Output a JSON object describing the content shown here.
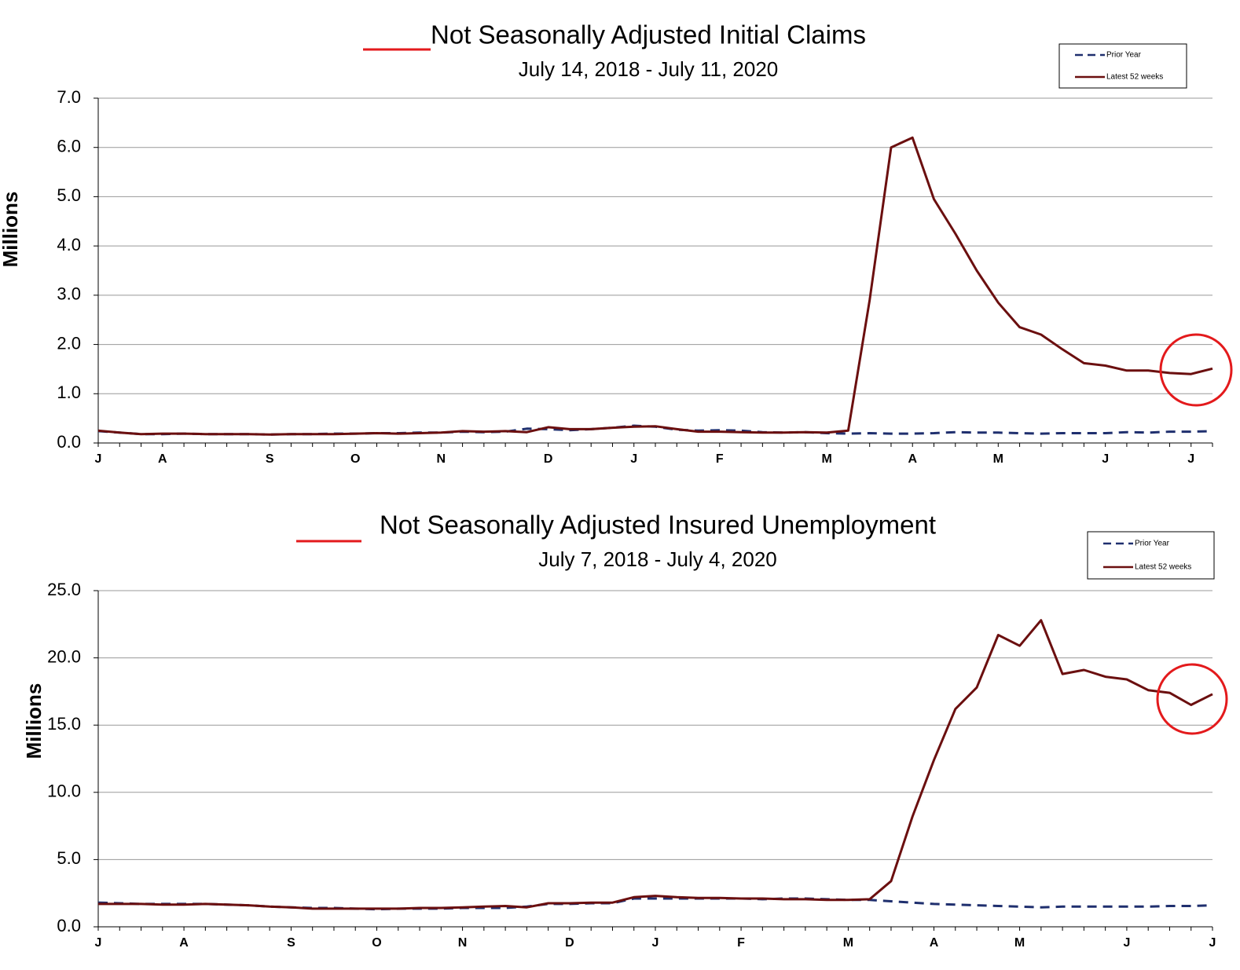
{
  "chart_data": [
    {
      "type": "line",
      "title": "Not Seasonally Adjusted Initial Claims",
      "subtitle": "July 14, 2018  - July 11, 2020",
      "y_label": "Millions",
      "categories": [
        "J",
        null,
        null,
        "A",
        null,
        null,
        null,
        null,
        "S",
        null,
        null,
        null,
        "O",
        null,
        null,
        null,
        "N",
        null,
        null,
        null,
        null,
        "D",
        null,
        null,
        null,
        "J",
        null,
        null,
        null,
        "F",
        null,
        null,
        null,
        null,
        "M",
        null,
        null,
        null,
        "A",
        null,
        null,
        null,
        "M",
        null,
        null,
        null,
        null,
        "J",
        null,
        null,
        null,
        "J",
        null
      ],
      "series": [
        {
          "name": "Prior Year",
          "color": "#1f2f6e",
          "dashed": true,
          "values": [
            0.24,
            0.21,
            0.18,
            0.18,
            0.19,
            0.18,
            0.18,
            0.18,
            0.17,
            0.18,
            0.18,
            0.19,
            0.19,
            0.2,
            0.2,
            0.21,
            0.21,
            0.23,
            0.22,
            0.23,
            0.29,
            0.28,
            0.26,
            0.28,
            0.31,
            0.35,
            0.33,
            0.27,
            0.25,
            0.26,
            0.25,
            0.22,
            0.21,
            0.22,
            0.2,
            0.19,
            0.2,
            0.19,
            0.19,
            0.2,
            0.22,
            0.21,
            0.21,
            0.2,
            0.19,
            0.2,
            0.2,
            0.2,
            0.22,
            0.21,
            0.23,
            0.23,
            0.24
          ]
        },
        {
          "name": "Latest 52 weeks",
          "color": "#6b0f0f",
          "dashed": false,
          "values": [
            0.25,
            0.21,
            0.18,
            0.19,
            0.19,
            0.18,
            0.18,
            0.18,
            0.17,
            0.18,
            0.18,
            0.18,
            0.19,
            0.2,
            0.19,
            0.2,
            0.21,
            0.24,
            0.23,
            0.24,
            0.22,
            0.32,
            0.28,
            0.28,
            0.31,
            0.33,
            0.34,
            0.28,
            0.23,
            0.23,
            0.22,
            0.21,
            0.21,
            0.22,
            0.21,
            0.25,
            2.9,
            6.0,
            6.2,
            4.95,
            4.25,
            3.5,
            2.85,
            2.35,
            2.2,
            1.9,
            1.62,
            1.57,
            1.47,
            1.47,
            1.42,
            1.4,
            1.51
          ]
        }
      ],
      "ylim": [
        0,
        7
      ],
      "yticks": [
        {
          "value": 0,
          "label": "0.0"
        },
        {
          "value": 1,
          "label": "1.0"
        },
        {
          "value": 2,
          "label": "2.0"
        },
        {
          "value": 3,
          "label": "3.0"
        },
        {
          "value": 4,
          "label": "4.0"
        },
        {
          "value": 5,
          "label": "5.0"
        },
        {
          "value": 6,
          "label": "6.0"
        },
        {
          "value": 7,
          "label": "7.0"
        }
      ],
      "grid": true,
      "legend": "top-right"
    },
    {
      "type": "line",
      "title": "Not Seasonally Adjusted Insured Unemployment",
      "subtitle": "July 7, 2018 - July 4, 2020",
      "y_label": "Millions",
      "categories": [
        "J",
        null,
        null,
        null,
        "A",
        null,
        null,
        null,
        null,
        "S",
        null,
        null,
        null,
        "O",
        null,
        null,
        null,
        "N",
        null,
        null,
        null,
        null,
        "D",
        null,
        null,
        null,
        "J",
        null,
        null,
        null,
        "F",
        null,
        null,
        null,
        null,
        "M",
        null,
        null,
        null,
        "A",
        null,
        null,
        null,
        "M",
        null,
        null,
        null,
        null,
        "J",
        null,
        null,
        null,
        "J"
      ],
      "series": [
        {
          "name": "Prior Year",
          "color": "#1f2f6e",
          "dashed": true,
          "values": [
            1.8,
            1.75,
            1.7,
            1.7,
            1.7,
            1.7,
            1.65,
            1.6,
            1.5,
            1.45,
            1.4,
            1.4,
            1.35,
            1.3,
            1.35,
            1.35,
            1.35,
            1.4,
            1.4,
            1.4,
            1.5,
            1.7,
            1.7,
            1.75,
            1.75,
            2.1,
            2.1,
            2.1,
            2.1,
            2.1,
            2.1,
            2.05,
            2.1,
            2.1,
            2.05,
            2.0,
            2.0,
            1.9,
            1.8,
            1.7,
            1.65,
            1.6,
            1.55,
            1.5,
            1.45,
            1.5,
            1.5,
            1.5,
            1.5,
            1.5,
            1.55,
            1.55,
            1.6
          ]
        },
        {
          "name": "Latest 52 weeks",
          "color": "#6b0f0f",
          "dashed": false,
          "values": [
            1.7,
            1.7,
            1.7,
            1.65,
            1.65,
            1.7,
            1.65,
            1.6,
            1.5,
            1.45,
            1.35,
            1.35,
            1.35,
            1.35,
            1.35,
            1.4,
            1.4,
            1.45,
            1.5,
            1.55,
            1.45,
            1.75,
            1.75,
            1.8,
            1.8,
            2.2,
            2.3,
            2.2,
            2.15,
            2.15,
            2.1,
            2.1,
            2.05,
            2.05,
            2.0,
            2.0,
            2.05,
            3.4,
            8.2,
            12.4,
            16.2,
            17.8,
            21.7,
            20.9,
            22.8,
            18.8,
            19.1,
            18.6,
            18.4,
            17.6,
            17.4,
            16.5,
            17.3
          ]
        }
      ],
      "ylim": [
        0,
        25
      ],
      "yticks": [
        {
          "value": 0,
          "label": "0.0"
        },
        {
          "value": 5,
          "label": "5.0"
        },
        {
          "value": 10,
          "label": "10.0"
        },
        {
          "value": 15,
          "label": "15.0"
        },
        {
          "value": 20,
          "label": "20.0"
        },
        {
          "value": 25,
          "label": "25.0"
        }
      ],
      "grid": true,
      "legend": "top-right"
    }
  ]
}
